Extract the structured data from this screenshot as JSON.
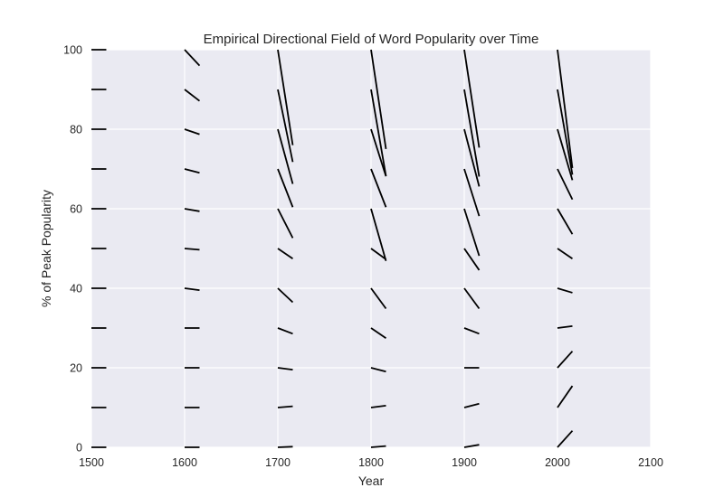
{
  "chart_data": {
    "type": "quiver",
    "title": "Empirical Directional Field of Word Popularity over Time",
    "xlabel": "Year",
    "ylabel": "% of Peak Popularity",
    "xlim": [
      1500,
      2100
    ],
    "ylim": [
      0,
      100
    ],
    "xticks": [
      1500,
      1600,
      1700,
      1800,
      1900,
      2000,
      2100
    ],
    "yticks": [
      0,
      20,
      40,
      60,
      80,
      100
    ],
    "grid": true,
    "legend": false,
    "colors": {
      "plot_background": "#EAEAF2",
      "grid": "#FFFFFF",
      "segment": "#000000",
      "text": "#262626"
    },
    "segment_length_years": 16,
    "columns": [
      {
        "x": 1500,
        "slopes": [
          0,
          0,
          0,
          0,
          0,
          0,
          0,
          0,
          0,
          0,
          0
        ]
      },
      {
        "x": 1600,
        "slopes": [
          0,
          0,
          0,
          0,
          -0.03,
          -0.02,
          -0.04,
          -0.06,
          -0.08,
          -0.18,
          -0.25
        ]
      },
      {
        "x": 1700,
        "slopes": [
          0.01,
          0.02,
          -0.03,
          -0.09,
          -0.22,
          -0.16,
          -0.46,
          -0.6,
          -0.86,
          -1.14,
          -1.5
        ]
      },
      {
        "x": 1800,
        "slopes": [
          0.02,
          0.03,
          -0.06,
          -0.16,
          -0.32,
          -0.17,
          -0.82,
          -0.6,
          -0.74,
          -1.36,
          -1.56
        ]
      },
      {
        "x": 1900,
        "slopes": [
          0.04,
          0.06,
          0,
          -0.09,
          -0.32,
          -0.34,
          -0.74,
          -0.74,
          -0.9,
          -1.37,
          -1.54
        ]
      },
      {
        "x": 2000,
        "slopes": [
          0.26,
          0.34,
          0.26,
          0.03,
          -0.07,
          -0.16,
          -0.4,
          -0.48,
          -0.8,
          -1.34,
          -1.86
        ]
      }
    ],
    "y_values": [
      0,
      10,
      20,
      30,
      40,
      50,
      60,
      70,
      80,
      90,
      100
    ]
  }
}
